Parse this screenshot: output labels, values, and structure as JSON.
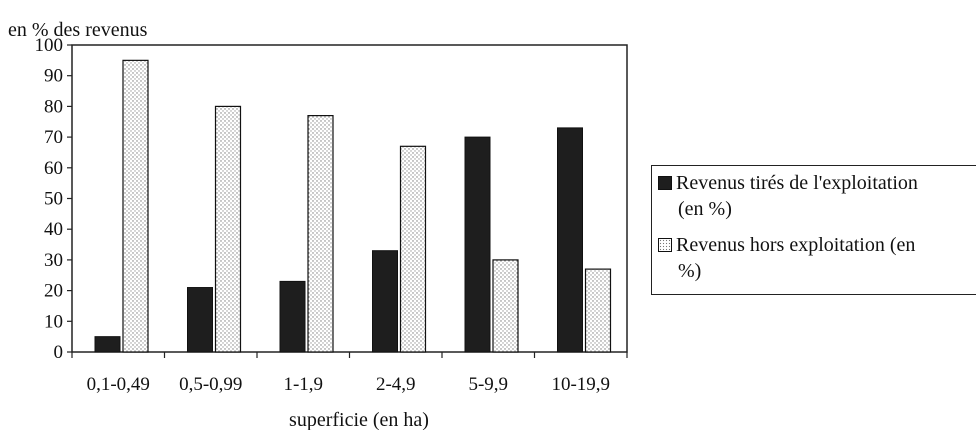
{
  "chart_data": {
    "type": "bar",
    "ylabel": "en % des revenus",
    "xlabel": "superficie (en ha)",
    "ylim": [
      0,
      100
    ],
    "yticks": [
      0,
      10,
      20,
      30,
      40,
      50,
      60,
      70,
      80,
      90,
      100
    ],
    "categories": [
      "0,1-0,49",
      "0,5-0,99",
      "1-1,9",
      "2-4,9",
      "5-9,9",
      "10-19,9"
    ],
    "series": [
      {
        "name": "Revenus tirés de l'exploitation (en %)",
        "values": [
          5,
          21,
          23,
          33,
          70,
          73
        ],
        "color": "#1e1e1e"
      },
      {
        "name": "Revenus hors exploitation (en %)",
        "values": [
          95,
          80,
          77,
          67,
          30,
          27
        ],
        "color": "#ffffff"
      }
    ],
    "grid": false,
    "legend_position": "right"
  },
  "legend": {
    "item1_line1": "Revenus tirés de l'exploitation",
    "item1_line2": "(en %)",
    "item2_line1": "Revenus hors exploitation  (en",
    "item2_line2": "%)"
  }
}
